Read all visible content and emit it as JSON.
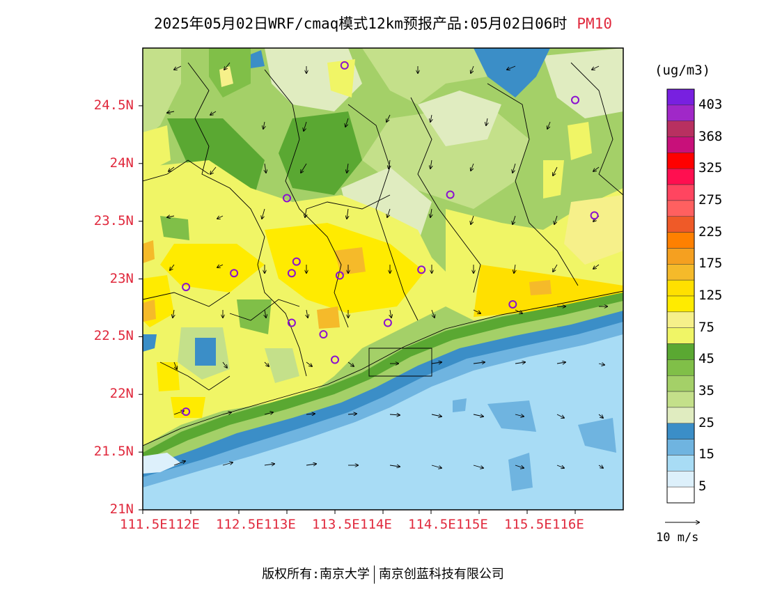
{
  "title": {
    "main": "2025年05月02日WRF/cmaq模式12km预报产品:05月02日06时",
    "pollutant": "PM10"
  },
  "axes": {
    "lat_labels": [
      "24.5N",
      "24N",
      "23.5N",
      "23N",
      "22.5N",
      "22N",
      "21.5N",
      "21N"
    ],
    "lon_labels": [
      "111.5E",
      "112E",
      "112.5E",
      "113E",
      "113.5E",
      "114E",
      "114.5E",
      "115E",
      "115.5E",
      "116E"
    ],
    "lon_range": [
      111.5,
      116.5
    ],
    "lat_range": [
      21.0,
      25.0
    ]
  },
  "legend": {
    "units": "(ug/m3)",
    "colors": [
      "#ffffff",
      "#ddf0fb",
      "#a8dcf5",
      "#6fb4e0",
      "#3b8ec7",
      "#e0ecc0",
      "#c4e08a",
      "#a4d068",
      "#80bf48",
      "#5aa832",
      "#f0f566",
      "#f6f08a",
      "#ffeb00",
      "#ffe000",
      "#f5ba2a",
      "#f5a020",
      "#ff8000",
      "#ef5a28",
      "#ff6060",
      "#ff4560",
      "#ff0f50",
      "#ff0000",
      "#c8107a",
      "#b83060",
      "#a028c8",
      "#7820e0"
    ],
    "labels": [
      "5",
      "15",
      "25",
      "35",
      "45",
      "75",
      "125",
      "175",
      "225",
      "275",
      "325",
      "368",
      "403"
    ]
  },
  "wind_scale": {
    "label": "10 m/s"
  },
  "cities": [
    {
      "lon": 113.6,
      "lat": 24.85
    },
    {
      "lon": 116.0,
      "lat": 24.55
    },
    {
      "lon": 113.0,
      "lat": 23.7
    },
    {
      "lon": 114.7,
      "lat": 23.73
    },
    {
      "lon": 116.2,
      "lat": 23.55
    },
    {
      "lon": 113.1,
      "lat": 23.15
    },
    {
      "lon": 112.45,
      "lat": 23.05
    },
    {
      "lon": 113.05,
      "lat": 23.05
    },
    {
      "lon": 113.55,
      "lat": 23.03
    },
    {
      "lon": 114.4,
      "lat": 23.08
    },
    {
      "lon": 111.95,
      "lat": 22.93
    },
    {
      "lon": 115.35,
      "lat": 22.78
    },
    {
      "lon": 113.05,
      "lat": 22.62
    },
    {
      "lon": 114.05,
      "lat": 22.62
    },
    {
      "lon": 113.38,
      "lat": 22.52
    },
    {
      "lon": 113.5,
      "lat": 22.3
    },
    {
      "lon": 111.95,
      "lat": 21.85
    }
  ],
  "footer": {
    "left": "版权所有:南京大学",
    "right": "南京创蓝科技有限公司"
  }
}
